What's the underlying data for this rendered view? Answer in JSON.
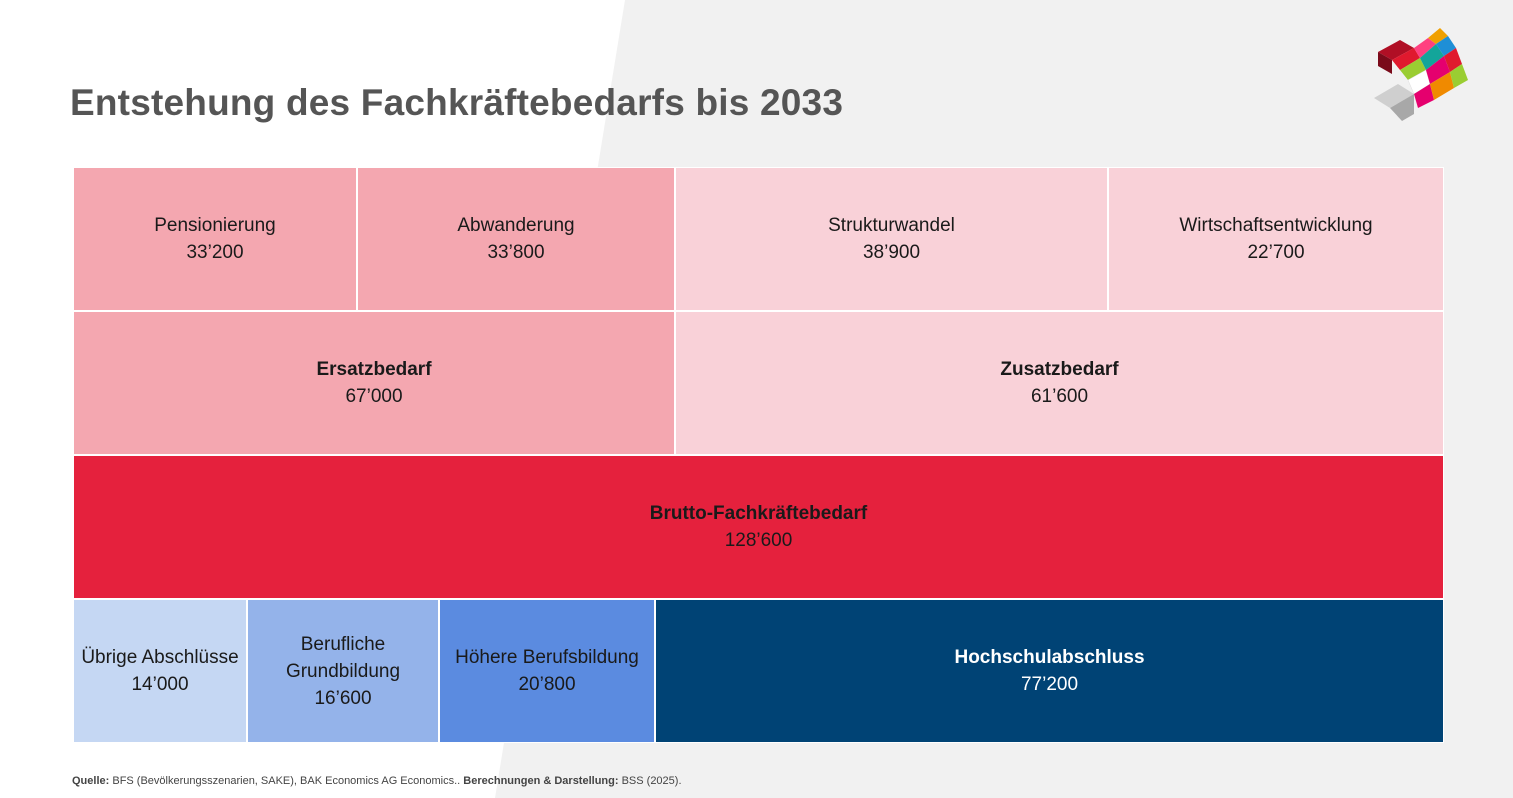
{
  "title": "Entstehung des Fachkräftebedarfs bis 2033",
  "colors": {
    "ersatz": "#f4a7b0",
    "zusatz": "#f9d1d8",
    "brutto": "#e5213d",
    "uebrige": "#c5d7f3",
    "beruflich": "#94b3ea",
    "hoehere": "#5b8be0",
    "hochschule": "#004375"
  },
  "chart_data": {
    "type": "treemap",
    "unit": "Personen",
    "rows": [
      {
        "name": "row-components",
        "cells": [
          {
            "label": "Pensionierung",
            "value": 33200,
            "display": "33’200",
            "group": "ersatz"
          },
          {
            "label": "Abwanderung",
            "value": 33800,
            "display": "33’800",
            "group": "ersatz"
          },
          {
            "label": "Strukturwandel",
            "value": 38900,
            "display": "38’900",
            "group": "zusatz"
          },
          {
            "label": "Wirtschaftsentwicklung",
            "value": 22700,
            "display": "22’700",
            "group": "zusatz"
          }
        ]
      },
      {
        "name": "row-needs",
        "cells": [
          {
            "label": "Ersatzbedarf",
            "value": 67000,
            "display": "67’000",
            "group": "ersatz",
            "bold": true
          },
          {
            "label": "Zusatzbedarf",
            "value": 61600,
            "display": "61’600",
            "group": "zusatz",
            "bold": true
          }
        ]
      },
      {
        "name": "row-total",
        "cells": [
          {
            "label": "Brutto-Fachkräftebedarf",
            "value": 128600,
            "display": "128’600",
            "group": "brutto",
            "bold": true
          }
        ]
      },
      {
        "name": "row-qualifications",
        "cells": [
          {
            "label": "Übrige Abschlüsse",
            "value": 14000,
            "display": "14’000",
            "group": "uebrige"
          },
          {
            "label": "Berufliche Grundbildung",
            "value": 16600,
            "display": "16’600",
            "group": "beruflich"
          },
          {
            "label": "Höhere Berufsbildung",
            "value": 20800,
            "display": "20’800",
            "group": "hoehere"
          },
          {
            "label": "Hochschulabschluss",
            "value": 77200,
            "display": "77’200",
            "group": "hochschule",
            "bold": true,
            "dark": true
          }
        ]
      }
    ]
  },
  "source": {
    "label1": "Quelle:",
    "text1": " BFS (Bevölkerungsszenarien, SAKE), BAK Economics AG Economics.. ",
    "label2": "Berechnungen & Darstellung:",
    "text2": " BSS (2025)."
  }
}
